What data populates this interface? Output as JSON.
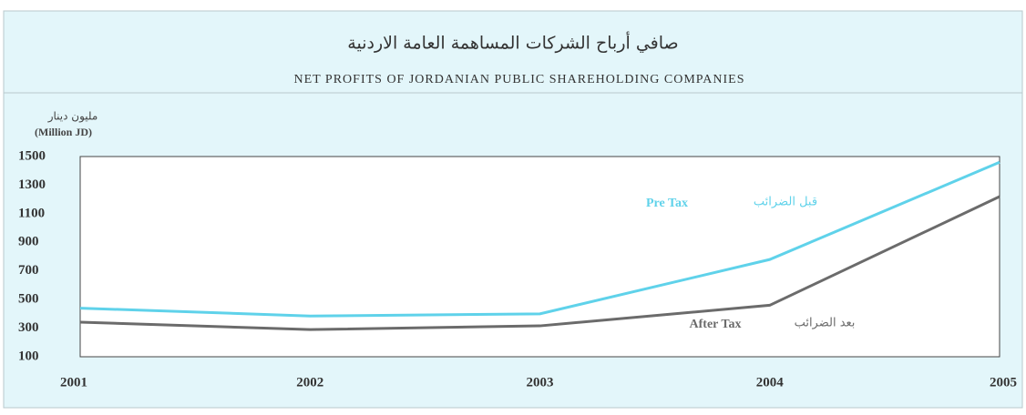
{
  "chart_data": {
    "type": "line",
    "title_ar": "صافي أرباح الشركات المساهمة العامة الاردنية",
    "title": "NET PROFITS OF JORDANIAN PUBLIC SHAREHOLDING COMPANIES",
    "y_label_ar": "مليون دينار",
    "y_label": "(Million JD)",
    "categories": [
      "2001",
      "2002",
      "2003",
      "2004",
      "2005"
    ],
    "series": [
      {
        "name": "Pre Tax",
        "name_ar": "قبل الضرائب",
        "color": "#5fd2ea",
        "values": [
          440,
          385,
          400,
          780,
          1460
        ]
      },
      {
        "name": "After Tax",
        "name_ar": "بعد الضرائب",
        "color": "#6b6b6b",
        "values": [
          342,
          290,
          316,
          460,
          1220
        ]
      }
    ],
    "ylim": [
      100,
      1500
    ],
    "yticks": [
      100,
      300,
      500,
      700,
      900,
      1100,
      1300,
      1500
    ],
    "grid": false
  }
}
